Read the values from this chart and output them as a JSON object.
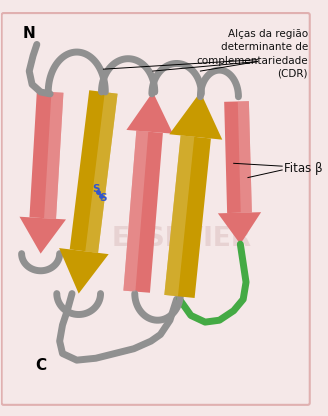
{
  "background_color": "#f5e8e8",
  "border_color": "#e0b0b0",
  "label_CDR": "Alças da região\ndeterminante de\ncomplementariedade\n(CDR)",
  "label_beta": "Fitas β",
  "label_N": "N",
  "label_C": "C",
  "pink_color": "#e07070",
  "pink_light": "#f0a0a0",
  "yellow_color": "#c89a00",
  "yellow_light": "#e8c040",
  "gray_color": "#909090",
  "green_color": "#44aa44",
  "blue_color": "#3355cc",
  "text_color": "#111111",
  "elsevier_color": "#ddc0c0",
  "fig_width": 3.28,
  "fig_height": 4.16,
  "dpi": 100
}
